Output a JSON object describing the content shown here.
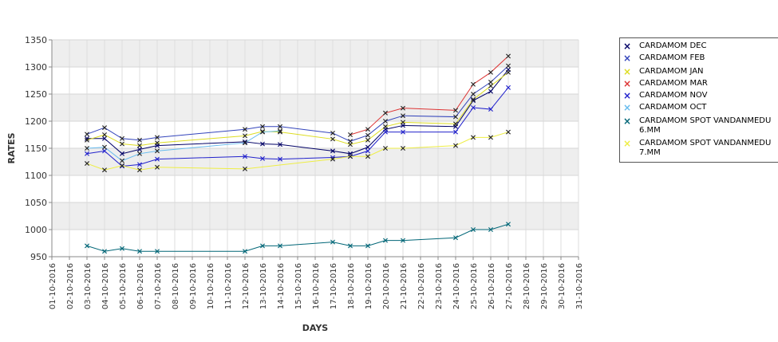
{
  "chart_data": {
    "type": "line",
    "xlabel": "DAYS",
    "ylabel": "RATES",
    "ylim": [
      950,
      1350
    ],
    "yticks": [
      950,
      1000,
      1050,
      1100,
      1150,
      1200,
      1250,
      1300,
      1350
    ],
    "categories": [
      "01-10-2016",
      "02-10-2016",
      "03-10-2016",
      "04-10-2016",
      "05-10-2016",
      "06-10-2016",
      "07-10-2016",
      "08-10-2016",
      "09-10-2016",
      "10-10-2016",
      "11-10-2016",
      "12-10-2016",
      "13-10-2016",
      "14-10-2016",
      "15-10-2016",
      "16-10-2016",
      "17-10-2016",
      "18-10-2016",
      "19-10-2016",
      "20-10-2016",
      "21-10-2016",
      "22-10-2016",
      "23-10-2016",
      "24-10-2016",
      "25-10-2016",
      "26-10-2016",
      "27-10-2016",
      "28-10-2016",
      "29-10-2016",
      "30-10-2016",
      "31-10-2016"
    ],
    "grid": true,
    "legend_position": "right",
    "series": [
      {
        "name": "CARDAMOM DEC",
        "color": "#000066",
        "values": [
          null,
          null,
          1168,
          1168,
          1140,
          1148,
          1155,
          null,
          null,
          null,
          null,
          1162,
          1158,
          1157,
          null,
          null,
          1145,
          1140,
          1152,
          1185,
          1192,
          null,
          null,
          1190,
          1238,
          1255,
          1295,
          null,
          null,
          null,
          null
        ]
      },
      {
        "name": "CARDAMOM FEB",
        "color": "#3344bb",
        "values": [
          null,
          null,
          1176,
          1188,
          1168,
          1165,
          1170,
          null,
          null,
          null,
          null,
          1185,
          1190,
          1190,
          null,
          null,
          1178,
          1163,
          1174,
          1200,
          1210,
          null,
          null,
          1208,
          1250,
          1272,
          1302,
          null,
          null,
          null,
          null
        ]
      },
      {
        "name": "CARDAMOM JAN",
        "color": "#dddd22",
        "values": [
          null,
          null,
          1165,
          1175,
          1158,
          1155,
          1160,
          null,
          null,
          null,
          null,
          1173,
          1181,
          1180,
          null,
          null,
          1167,
          1157,
          1165,
          1190,
          1198,
          null,
          null,
          1195,
          1240,
          1265,
          1290,
          null,
          null,
          null,
          null
        ]
      },
      {
        "name": "CARDAMOM MAR",
        "color": "#dd3333",
        "values": [
          null,
          null,
          null,
          null,
          null,
          null,
          null,
          null,
          null,
          null,
          null,
          null,
          null,
          null,
          null,
          null,
          null,
          1175,
          1185,
          1215,
          1224,
          null,
          null,
          1220,
          1268,
          1290,
          1320,
          null,
          null,
          null,
          null
        ]
      },
      {
        "name": "CARDAMOM NOV",
        "color": "#2222cc",
        "values": [
          null,
          null,
          1140,
          1145,
          1117,
          1120,
          1130,
          null,
          null,
          null,
          null,
          1135,
          1131,
          1130,
          null,
          null,
          1133,
          1135,
          1145,
          1180,
          1180,
          null,
          null,
          1180,
          1225,
          1222,
          1262,
          null,
          null,
          null,
          null
        ]
      },
      {
        "name": "CARDAMOM OCT",
        "color": "#66bbee",
        "values": [
          null,
          null,
          1150,
          1152,
          1127,
          1140,
          1145,
          null,
          null,
          null,
          null,
          1160,
          1180,
          1182,
          null,
          null,
          null,
          null,
          null,
          null,
          null,
          null,
          null,
          null,
          null,
          null,
          null,
          null,
          null,
          null,
          null
        ]
      },
      {
        "name": "CARDAMOM SPOT VANDANMEDU\n6.MM",
        "color": "#006677",
        "values": [
          null,
          null,
          970,
          960,
          965,
          960,
          960,
          null,
          null,
          null,
          null,
          960,
          970,
          970,
          null,
          null,
          977,
          970,
          970,
          980,
          980,
          null,
          null,
          985,
          1000,
          1000,
          1010,
          null,
          null,
          null,
          null
        ]
      },
      {
        "name": "CARDAMOM SPOT VANDANMEDU\n7.MM",
        "color": "#eeee44",
        "values": [
          null,
          null,
          1122,
          1110,
          1118,
          1110,
          1115,
          null,
          null,
          null,
          null,
          1112,
          null,
          null,
          null,
          null,
          1130,
          1135,
          1135,
          1150,
          1150,
          null,
          null,
          1155,
          1170,
          1170,
          1180,
          null,
          null,
          null,
          null
        ]
      }
    ]
  }
}
